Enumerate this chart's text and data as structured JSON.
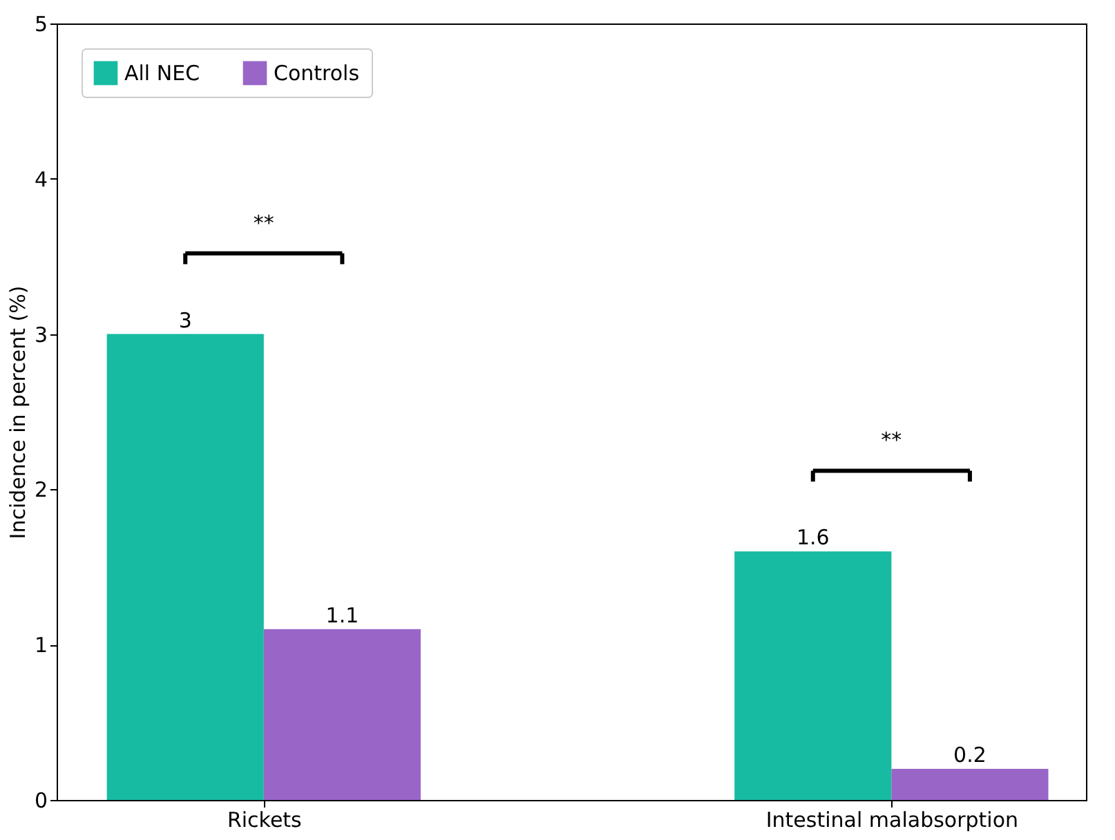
{
  "chart_data": {
    "type": "bar",
    "ylabel": "Incidence in percent (%)",
    "categories": [
      "Rickets",
      "Intestinal malabsorption"
    ],
    "series": [
      {
        "name": "All NEC",
        "color": "#17bba2",
        "values": [
          3,
          1.6
        ]
      },
      {
        "name": "Controls",
        "color": "#9966c8",
        "values": [
          1.1,
          0.2
        ]
      }
    ],
    "ylim": [
      0,
      5
    ],
    "yticks": [
      0,
      1,
      2,
      3,
      4,
      5
    ],
    "data_labels": true,
    "legend": "top left",
    "grid": false,
    "annotations": [
      "**",
      "**"
    ]
  }
}
